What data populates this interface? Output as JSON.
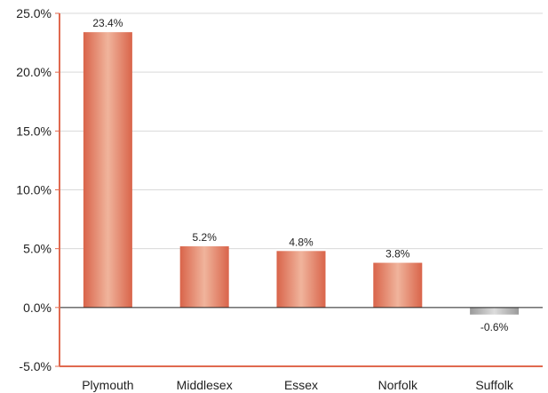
{
  "chart_data": {
    "type": "bar",
    "title": "",
    "xlabel": "",
    "ylabel": "",
    "categories": [
      "Plymouth",
      "Middlesex",
      "Essex",
      "Norfolk",
      "Suffolk"
    ],
    "values": [
      23.4,
      5.2,
      4.8,
      3.8,
      -0.6
    ],
    "data_labels": [
      "23.4%",
      "5.2%",
      "4.8%",
      "3.8%",
      "-0.6%"
    ],
    "ylim": [
      -5,
      25
    ],
    "yticks": [
      -5,
      0,
      5,
      10,
      15,
      20,
      25
    ],
    "ytick_labels": [
      "-5.0%",
      "0.0%",
      "5.0%",
      "10.0%",
      "15.0%",
      "20.0%",
      "25.0%"
    ],
    "grid": true,
    "legend": "none",
    "colors": {
      "positive_bar": "#d9644a",
      "positive_bar_highlight": "#f0b49c",
      "negative_bar": "#9a9a9a",
      "negative_bar_highlight": "#dcdcdc",
      "axis": "#e06a4f",
      "gridline": "#d9d9d9",
      "zero_line": "#222222"
    }
  }
}
